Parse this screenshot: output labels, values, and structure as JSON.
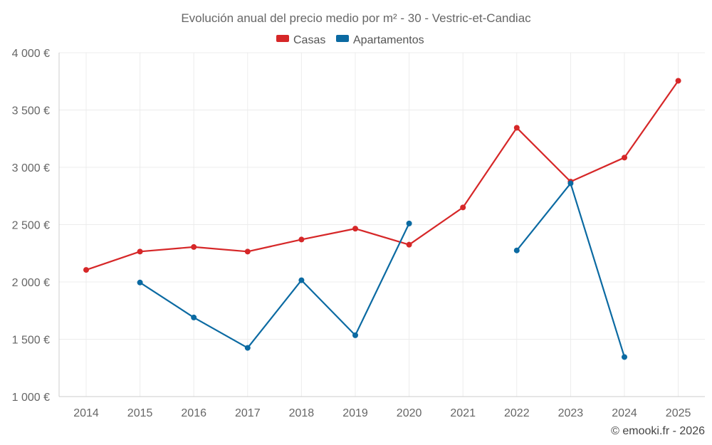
{
  "chart_data": {
    "type": "line",
    "title": "Evolución anual del precio medio por m² - 30 - Vestric-et-Candiac",
    "categories": [
      "2014",
      "2015",
      "2016",
      "2017",
      "2018",
      "2019",
      "2020",
      "2021",
      "2022",
      "2023",
      "2024",
      "2025"
    ],
    "ylim": [
      1000,
      4000
    ],
    "yticks": [
      1000,
      1500,
      2000,
      2500,
      3000,
      3500,
      4000
    ],
    "ytick_labels": [
      "1 000 €",
      "1 500 €",
      "2 000 €",
      "2 500 €",
      "3 000 €",
      "3 500 €",
      "4 000 €"
    ],
    "grid": true,
    "legend_position": "top-center",
    "series": [
      {
        "name": "Casas",
        "color": "#d62728",
        "values": [
          2105,
          2265,
          2305,
          2265,
          2370,
          2465,
          2325,
          2650,
          3345,
          2875,
          3085,
          3755
        ]
      },
      {
        "name": "Apartamentos",
        "color": "#0b6aa2",
        "values": [
          null,
          1995,
          1690,
          1425,
          2015,
          1535,
          2510,
          null,
          2275,
          2860,
          1345,
          null
        ]
      }
    ]
  },
  "credit": "© emooki.fr - 2026"
}
